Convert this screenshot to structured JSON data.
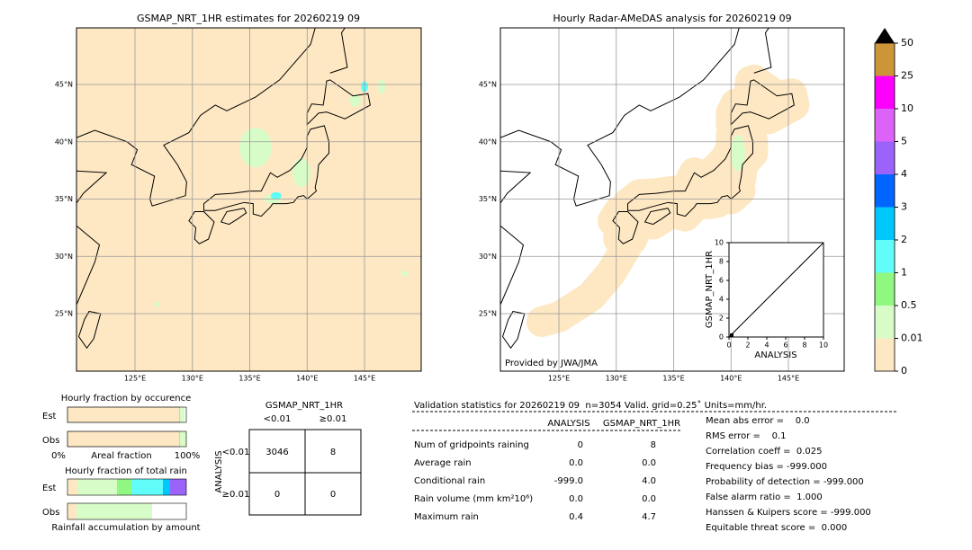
{
  "left_map": {
    "title": "GSMAP_NRT_1HR estimates for 20260219 09",
    "lat_labels": [
      "45°N",
      "40°N",
      "35°N",
      "30°N",
      "25°N"
    ],
    "lon_labels": [
      "125°E",
      "130°E",
      "135°E",
      "140°E",
      "145°E"
    ]
  },
  "right_map": {
    "title": "Hourly Radar-AMeDAS analysis for 20260219 09",
    "lat_labels": [
      "45°N",
      "40°N",
      "35°N",
      "30°N",
      "25°N"
    ],
    "lon_labels": [
      "125°E",
      "130°E",
      "135°E",
      "140°E",
      "145°E"
    ],
    "credit": "Provided by JWA/JMA"
  },
  "inset": {
    "xlabel": "ANALYSIS",
    "ylabel": "GSMAP_NRT_1HR",
    "xlim": [
      0,
      10
    ],
    "ylim": [
      0,
      10
    ],
    "xticks": [
      0,
      2,
      4,
      6,
      8,
      10
    ],
    "yticks": [
      0,
      2,
      4,
      6,
      8,
      10
    ]
  },
  "colorbar": {
    "ticks": [
      0,
      0.01,
      0.5,
      1,
      2,
      3,
      4,
      5,
      10,
      25,
      50
    ],
    "colors": [
      "#fee8c3",
      "#d8fcc8",
      "#90f880",
      "#60fdf9",
      "#00c8fd",
      "#0065fd",
      "#9b63fa",
      "#dd63f8",
      "#fd00fd",
      "#cc9538"
    ]
  },
  "occurrence": {
    "title": "Hourly fraction by occurence",
    "rows": [
      "Est",
      "Obs"
    ],
    "axis": [
      "0%",
      "Areal fraction",
      "100%"
    ]
  },
  "total_rain": {
    "title": "Hourly fraction of total rain",
    "rows": [
      "Est",
      "Obs"
    ],
    "footer": "Rainfall accumulation by amount"
  },
  "contingency": {
    "title": "GSMAP_NRT_1HR",
    "columns": [
      "<0.01",
      "≥0.01"
    ],
    "row_axis": "ANALYSIS",
    "rows": [
      "<0.01",
      "≥0.01"
    ],
    "cells": [
      [
        "3046",
        "8"
      ],
      [
        "0",
        "0"
      ]
    ]
  },
  "validation": {
    "header": "Validation statistics for 20260219 09  n=3054 Valid. grid=0.25˚ Units=mm/hr.",
    "columns": [
      "ANALYSIS",
      "GSMAP_NRT_1HR"
    ],
    "rows": [
      [
        "Num of gridpoints raining",
        "0",
        "8"
      ],
      [
        "Average rain",
        "0.0",
        "0.0"
      ],
      [
        "Conditional rain",
        "-999.0",
        "4.0"
      ],
      [
        "Rain volume (mm km²10⁶)",
        "0.0",
        "0.0"
      ],
      [
        "Maximum rain",
        "0.4",
        "4.7"
      ]
    ],
    "scores": [
      "Mean abs error =    0.0",
      "RMS error =    0.1",
      "Correlation coeff =  0.025",
      "Frequency bias = -999.000",
      "Probability of detection = -999.000",
      "False alarm ratio =  1.000",
      "Hanssen & Kuipers score = -999.000",
      "Equitable threat score =  0.000"
    ]
  }
}
